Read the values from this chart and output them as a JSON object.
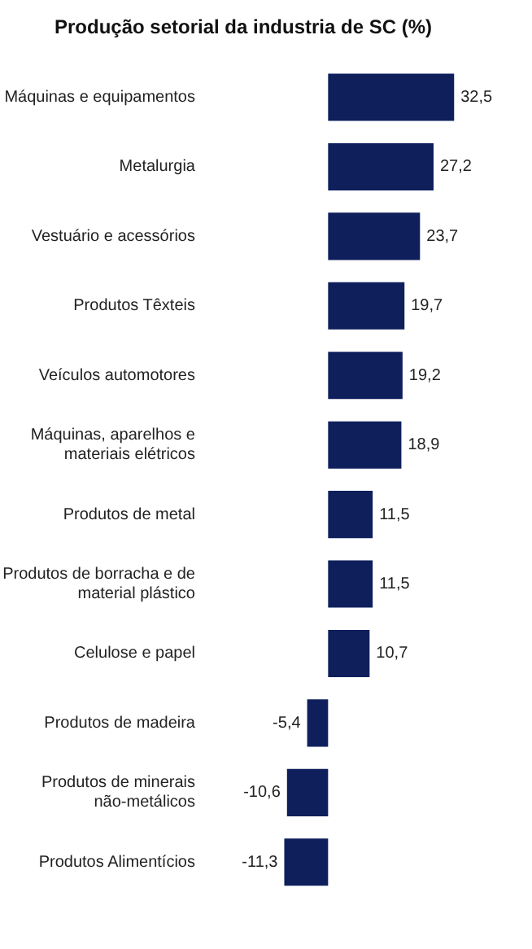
{
  "chart_data": {
    "type": "bar",
    "orientation": "horizontal",
    "title": "Produção setorial da industria de SC (%)",
    "categories": [
      "Máquinas e equipamentos",
      "Metalurgia",
      "Vestuário e acessórios",
      "Produtos Têxteis",
      "Veículos automotores",
      "Máquinas, aparelhos e materiais elétricos",
      "Produtos de metal",
      "Produtos de borracha e de material plástico",
      "Celulose e papel",
      "Produtos de madeira",
      "Produtos de minerais não-metálicos",
      "Produtos Alimentícios"
    ],
    "values": [
      32.5,
      27.2,
      23.7,
      19.7,
      19.2,
      18.9,
      11.5,
      11.5,
      10.7,
      -5.4,
      -10.6,
      -11.3
    ],
    "value_labels": [
      "32,5",
      "27,2",
      "23,7",
      "19,7",
      "19,2",
      "18,9",
      "11,5",
      "11,5",
      "10,7",
      "-5,4",
      "-10,6",
      "-11,3"
    ],
    "color": "#0f1f5c",
    "grid": false,
    "legend": false
  }
}
